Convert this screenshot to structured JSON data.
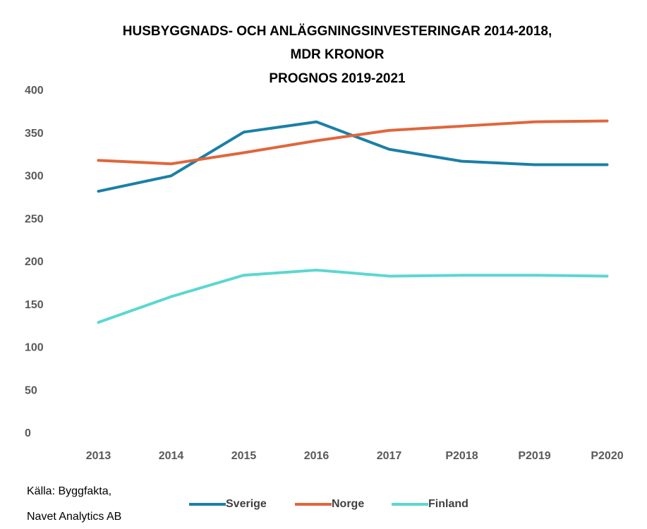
{
  "chart_data": {
    "type": "line",
    "title": [
      "HUSBYGGNADS- OCH ANLÄGGNINGSINVESTERINGAR 2014-2018,",
      "MDR KRONOR",
      "PROGNOS 2019-2021"
    ],
    "categories": [
      "2013",
      "2014",
      "2015",
      "2016",
      "2017",
      "P2018",
      "P2019",
      "P2020"
    ],
    "series": [
      {
        "name": "Sverige",
        "color": "#1b7fa6",
        "values": [
          283,
          301,
          352,
          364,
          332,
          318,
          314,
          314
        ]
      },
      {
        "name": "Norge",
        "color": "#e0663c",
        "values": [
          319,
          315,
          328,
          342,
          354,
          359,
          364,
          365
        ]
      },
      {
        "name": "Finland",
        "color": "#5bd7d1",
        "values": [
          130,
          160,
          185,
          191,
          184,
          185,
          185,
          184
        ]
      }
    ],
    "ylim": [
      0,
      400
    ],
    "yticks": [
      0,
      50,
      100,
      150,
      200,
      250,
      300,
      350,
      400
    ],
    "grid": false,
    "legend": "bottom",
    "source": [
      "Källa: Byggfakta,",
      "Navet Analytics AB"
    ]
  }
}
